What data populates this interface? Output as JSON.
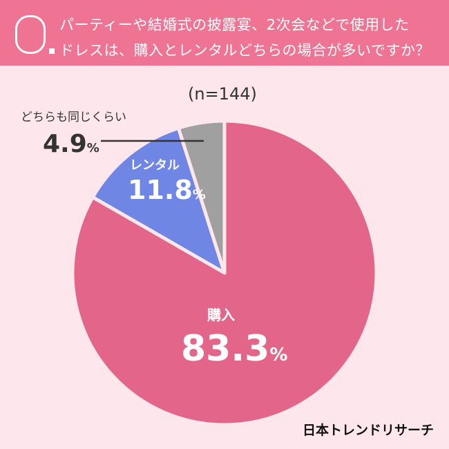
{
  "question": {
    "mark": "Q",
    "line1": "パーティーや結婚式の披露宴、2次会などで使用した",
    "line2": "ドレスは、購入とレンタルどちらの場合が多いですか？"
  },
  "brand": "日本トレンドリサーチ",
  "colors": {
    "header": "#ef7393",
    "background": "#fde6ec",
    "separator": "#fde6ec"
  },
  "chart_data": {
    "type": "pie",
    "title": "パーティーや結婚式の披露宴、2次会などで使用したドレスは、購入とレンタルどちらの場合が多いですか？",
    "sample": "(n=144)",
    "unit": "%",
    "slices": [
      {
        "label": "購入",
        "value": 83.3,
        "display": "83.3",
        "color": "#e4658a"
      },
      {
        "label": "レンタル",
        "value": 11.8,
        "display": "11.8",
        "color": "#6f86e5"
      },
      {
        "label": "どちらも同じくらい",
        "value": 4.9,
        "display": "4.9",
        "color": "#a0a0a0"
      }
    ]
  }
}
